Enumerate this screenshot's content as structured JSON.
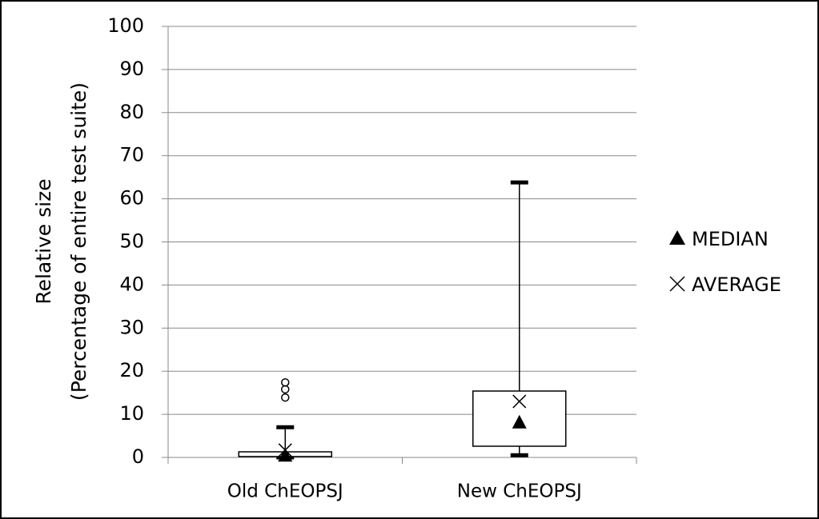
{
  "chart_data": {
    "type": "box",
    "y_label": [
      "Relative size",
      "(Percentage of entire test suite)"
    ],
    "categories": [
      "Old ChEOPSJ",
      "New ChEOPSJ"
    ],
    "boxes": [
      {
        "min": 0,
        "q1": 0.2,
        "median": 0.5,
        "q3": 1.3,
        "max": 7,
        "mean": 1.7,
        "outliers": [
          13.9,
          15.8,
          17.4
        ]
      },
      {
        "min": 0.5,
        "q1": 2.6,
        "median": 8.2,
        "q3": 15.4,
        "max": 63.8,
        "mean": 13,
        "outliers": []
      }
    ],
    "legend": [
      "MEDIAN",
      "AVERAGE"
    ],
    "legend_position": "right",
    "ylim": [
      0,
      100
    ],
    "yticks": [
      0,
      10,
      20,
      30,
      40,
      50,
      60,
      70,
      80,
      90,
      100
    ],
    "grid": true
  }
}
